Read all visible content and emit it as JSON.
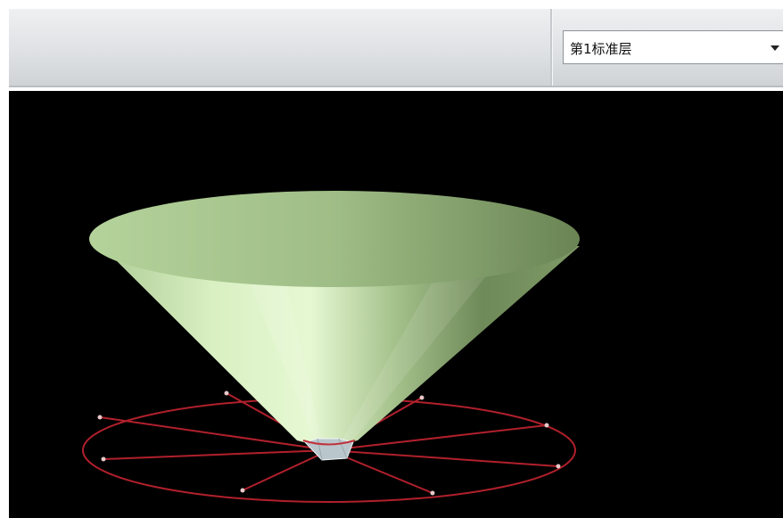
{
  "toolbar": {
    "layer_select": {
      "value": "第1标准层",
      "arrow_icon": "triangle-down-icon"
    }
  },
  "viewport": {
    "background": "#000000",
    "model": {
      "cone_color": "#c4e0ac",
      "base_ring_color": "#b0202c",
      "base_cap_color": "#b9c6cc"
    }
  }
}
